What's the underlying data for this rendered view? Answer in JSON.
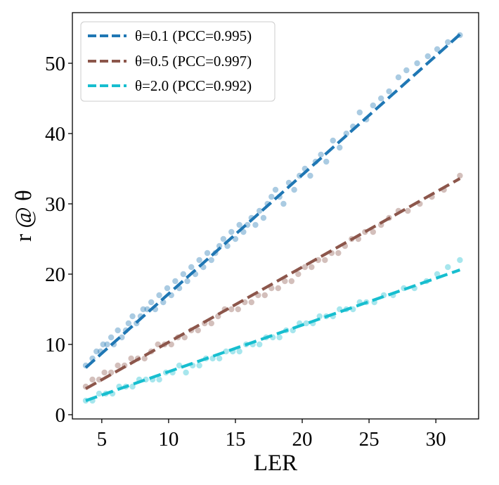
{
  "chart_data": {
    "type": "scatter",
    "title": "",
    "xlabel": "LER",
    "ylabel": "r @ θ",
    "xlim": [
      2.8,
      33.2
    ],
    "ylim": [
      -0.6,
      57.2
    ],
    "xticks": [
      5,
      10,
      15,
      20,
      25,
      30
    ],
    "yticks": [
      0,
      10,
      20,
      30,
      40,
      50
    ],
    "grid": false,
    "legend_position": "top-left",
    "series": [
      {
        "name": "θ=0.1 (PCC=0.995)",
        "color": "#1f77b4",
        "fit": [
          [
            3.8,
            6.7
          ],
          [
            31.8,
            54.1
          ]
        ],
        "points": [
          [
            3.8,
            7
          ],
          [
            4.3,
            8
          ],
          [
            4.6,
            9
          ],
          [
            4.9,
            9
          ],
          [
            5.1,
            10
          ],
          [
            5.4,
            10
          ],
          [
            5.7,
            11
          ],
          [
            5.9,
            10
          ],
          [
            6.2,
            12
          ],
          [
            6.5,
            11
          ],
          [
            6.8,
            12
          ],
          [
            7.0,
            13
          ],
          [
            7.3,
            14
          ],
          [
            7.6,
            13
          ],
          [
            7.9,
            14
          ],
          [
            8.1,
            15
          ],
          [
            8.4,
            15
          ],
          [
            8.7,
            16
          ],
          [
            9.0,
            15
          ],
          [
            9.3,
            17
          ],
          [
            9.6,
            16
          ],
          [
            9.9,
            18
          ],
          [
            10.2,
            17
          ],
          [
            10.5,
            19
          ],
          [
            10.8,
            18
          ],
          [
            11.1,
            20
          ],
          [
            11.4,
            19
          ],
          [
            11.7,
            21
          ],
          [
            12.0,
            20
          ],
          [
            12.3,
            22
          ],
          [
            12.6,
            21
          ],
          [
            12.9,
            23
          ],
          [
            13.2,
            22
          ],
          [
            13.5,
            23
          ],
          [
            13.8,
            24
          ],
          [
            14.1,
            25
          ],
          [
            14.4,
            24
          ],
          [
            14.7,
            26
          ],
          [
            15.0,
            25
          ],
          [
            15.3,
            27
          ],
          [
            15.6,
            26
          ],
          [
            15.9,
            27
          ],
          [
            16.2,
            28
          ],
          [
            16.5,
            27
          ],
          [
            16.8,
            29
          ],
          [
            17.1,
            28
          ],
          [
            17.4,
            30
          ],
          [
            17.7,
            31
          ],
          [
            18.0,
            32
          ],
          [
            18.3,
            31
          ],
          [
            18.6,
            30
          ],
          [
            19.0,
            33
          ],
          [
            19.4,
            32
          ],
          [
            19.8,
            34
          ],
          [
            20.2,
            35
          ],
          [
            20.6,
            34
          ],
          [
            21.0,
            36
          ],
          [
            21.4,
            37
          ],
          [
            21.8,
            36
          ],
          [
            22.3,
            39
          ],
          [
            22.8,
            38
          ],
          [
            23.3,
            40
          ],
          [
            23.8,
            41
          ],
          [
            24.3,
            43
          ],
          [
            24.8,
            42
          ],
          [
            25.3,
            44
          ],
          [
            25.9,
            45
          ],
          [
            26.5,
            46
          ],
          [
            27.2,
            48
          ],
          [
            27.8,
            49
          ],
          [
            28.6,
            50
          ],
          [
            29.4,
            51
          ],
          [
            30.1,
            52
          ],
          [
            30.9,
            53
          ],
          [
            31.8,
            54
          ]
        ]
      },
      {
        "name": "θ=0.5 (PCC=0.997)",
        "color": "#8c564b",
        "fit": [
          [
            3.8,
            3.7
          ],
          [
            31.8,
            33.6
          ]
        ],
        "points": [
          [
            3.8,
            4
          ],
          [
            4.3,
            5
          ],
          [
            4.8,
            5
          ],
          [
            5.2,
            6
          ],
          [
            5.7,
            6
          ],
          [
            6.2,
            7
          ],
          [
            6.7,
            7
          ],
          [
            7.2,
            8
          ],
          [
            7.7,
            8
          ],
          [
            8.2,
            8
          ],
          [
            8.7,
            9
          ],
          [
            9.2,
            10
          ],
          [
            9.7,
            10
          ],
          [
            10.2,
            10
          ],
          [
            10.7,
            11
          ],
          [
            11.2,
            11
          ],
          [
            11.7,
            12
          ],
          [
            12.2,
            12
          ],
          [
            12.7,
            13
          ],
          [
            13.2,
            13
          ],
          [
            13.7,
            14
          ],
          [
            14.2,
            15
          ],
          [
            14.7,
            15
          ],
          [
            15.2,
            15
          ],
          [
            15.7,
            16
          ],
          [
            16.2,
            16
          ],
          [
            16.7,
            17
          ],
          [
            17.2,
            17
          ],
          [
            17.7,
            18
          ],
          [
            18.2,
            18
          ],
          [
            18.7,
            19
          ],
          [
            19.2,
            19
          ],
          [
            19.7,
            20
          ],
          [
            20.2,
            21
          ],
          [
            20.7,
            21
          ],
          [
            21.2,
            22
          ],
          [
            21.7,
            22
          ],
          [
            22.2,
            23
          ],
          [
            22.7,
            23
          ],
          [
            23.2,
            24
          ],
          [
            23.7,
            25
          ],
          [
            24.2,
            25
          ],
          [
            24.7,
            26
          ],
          [
            25.3,
            26
          ],
          [
            25.9,
            27
          ],
          [
            26.5,
            28
          ],
          [
            27.2,
            29
          ],
          [
            27.9,
            29
          ],
          [
            28.8,
            30
          ],
          [
            29.7,
            31
          ],
          [
            30.6,
            32
          ],
          [
            31.8,
            34
          ]
        ]
      },
      {
        "name": "θ=2.0 (PCC=0.992)",
        "color": "#17becf",
        "fit": [
          [
            3.8,
            2.0
          ],
          [
            31.8,
            20.6
          ]
        ],
        "points": [
          [
            3.8,
            2
          ],
          [
            4.3,
            2
          ],
          [
            4.8,
            3
          ],
          [
            5.3,
            3
          ],
          [
            5.8,
            3
          ],
          [
            6.3,
            4
          ],
          [
            6.8,
            4
          ],
          [
            7.3,
            4
          ],
          [
            7.8,
            5
          ],
          [
            8.3,
            5
          ],
          [
            8.8,
            5
          ],
          [
            9.3,
            5
          ],
          [
            9.8,
            6
          ],
          [
            10.3,
            6
          ],
          [
            10.8,
            7
          ],
          [
            11.3,
            6
          ],
          [
            11.8,
            7
          ],
          [
            12.3,
            7
          ],
          [
            12.8,
            8
          ],
          [
            13.3,
            8
          ],
          [
            13.8,
            8
          ],
          [
            14.3,
            9
          ],
          [
            14.8,
            9
          ],
          [
            15.3,
            9
          ],
          [
            15.8,
            10
          ],
          [
            16.3,
            10
          ],
          [
            16.8,
            10
          ],
          [
            17.3,
            11
          ],
          [
            17.8,
            11
          ],
          [
            18.3,
            11
          ],
          [
            18.8,
            12
          ],
          [
            19.3,
            12
          ],
          [
            19.8,
            13
          ],
          [
            20.3,
            13
          ],
          [
            20.8,
            13
          ],
          [
            21.3,
            14
          ],
          [
            21.8,
            14
          ],
          [
            22.3,
            14
          ],
          [
            22.8,
            15
          ],
          [
            23.3,
            15
          ],
          [
            23.8,
            15
          ],
          [
            24.3,
            16
          ],
          [
            24.8,
            16
          ],
          [
            25.4,
            16
          ],
          [
            26.1,
            17
          ],
          [
            26.8,
            17
          ],
          [
            27.6,
            18
          ],
          [
            28.4,
            18
          ],
          [
            29.3,
            19
          ],
          [
            30.1,
            20
          ],
          [
            30.9,
            21
          ],
          [
            31.8,
            22
          ]
        ]
      }
    ]
  }
}
